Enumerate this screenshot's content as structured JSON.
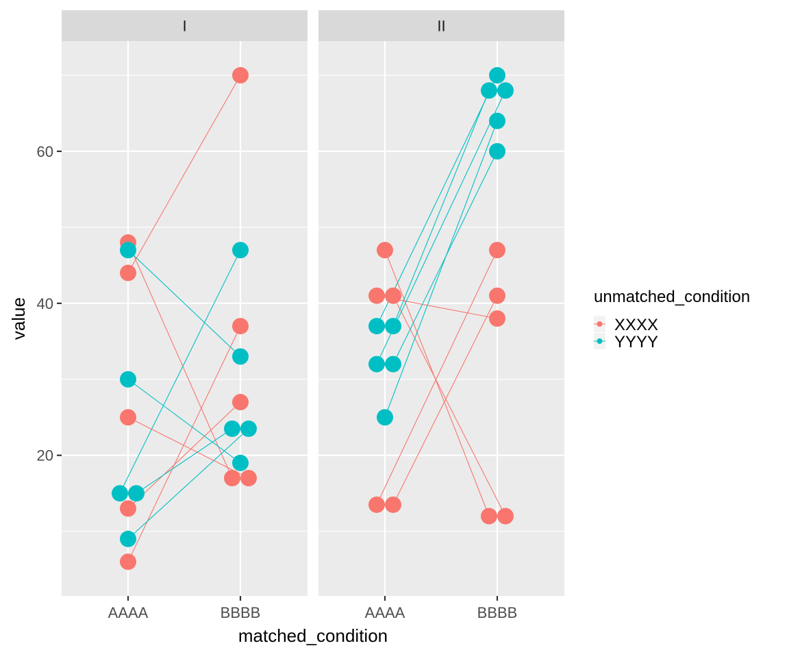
{
  "chart_data": {
    "type": "scatter",
    "xlabel": "matched_condition",
    "ylabel": "value",
    "ylim": [
      1.5,
      74.5
    ],
    "yticks": [
      20,
      40,
      60
    ],
    "categories": [
      "AAAA",
      "BBBB"
    ],
    "grid": true,
    "legend": {
      "title": "unmatched_condition",
      "placement": "right",
      "entries": [
        {
          "name": "XXXX",
          "color": "#F8766D"
        },
        {
          "name": "YYYY",
          "color": "#00BFC4"
        }
      ]
    },
    "panels": [
      {
        "strip": "I",
        "pairs": [
          {
            "group": "XXXX",
            "from": [
              "AAAA",
              48
            ],
            "to": [
              "BBBB",
              17
            ]
          },
          {
            "group": "XXXX",
            "from": [
              "AAAA",
              44
            ],
            "to": [
              "BBBB",
              70
            ]
          },
          {
            "group": "XXXX",
            "from": [
              "AAAA",
              25
            ],
            "to": [
              "BBBB",
              17
            ]
          },
          {
            "group": "XXXX",
            "from": [
              "AAAA",
              13
            ],
            "to": [
              "BBBB",
              27
            ]
          },
          {
            "group": "XXXX",
            "from": [
              "AAAA",
              6
            ],
            "to": [
              "BBBB",
              37
            ]
          },
          {
            "group": "YYYY",
            "from": [
              "AAAA",
              47
            ],
            "to": [
              "BBBB",
              33
            ]
          },
          {
            "group": "YYYY",
            "from": [
              "AAAA",
              30
            ],
            "to": [
              "BBBB",
              19
            ]
          },
          {
            "group": "YYYY",
            "from": [
              "AAAA",
              15
            ],
            "to": [
              "BBBB",
              47
            ]
          },
          {
            "group": "YYYY",
            "from": [
              "AAAA",
              15
            ],
            "to": [
              "BBBB",
              23.5
            ]
          },
          {
            "group": "YYYY",
            "from": [
              "AAAA",
              9
            ],
            "to": [
              "BBBB",
              23.5
            ]
          }
        ]
      },
      {
        "strip": "II",
        "pairs": [
          {
            "group": "XXXX",
            "from": [
              "AAAA",
              47
            ],
            "to": [
              "BBBB",
              12
            ]
          },
          {
            "group": "XXXX",
            "from": [
              "AAAA",
              41
            ],
            "to": [
              "BBBB",
              38
            ]
          },
          {
            "group": "XXXX",
            "from": [
              "AAAA",
              41
            ],
            "to": [
              "BBBB",
              12
            ]
          },
          {
            "group": "XXXX",
            "from": [
              "AAAA",
              13.5
            ],
            "to": [
              "BBBB",
              47
            ]
          },
          {
            "group": "XXXX",
            "from": [
              "AAAA",
              13.5
            ],
            "to": [
              "BBBB",
              41
            ]
          },
          {
            "group": "YYYY",
            "from": [
              "AAAA",
              37
            ],
            "to": [
              "BBBB",
              70
            ]
          },
          {
            "group": "YYYY",
            "from": [
              "AAAA",
              37
            ],
            "to": [
              "BBBB",
              68
            ]
          },
          {
            "group": "YYYY",
            "from": [
              "AAAA",
              32
            ],
            "to": [
              "BBBB",
              68
            ]
          },
          {
            "group": "YYYY",
            "from": [
              "AAAA",
              32
            ],
            "to": [
              "BBBB",
              60
            ]
          },
          {
            "group": "YYYY",
            "from": [
              "AAAA",
              25
            ],
            "to": [
              "BBBB",
              64
            ]
          }
        ]
      }
    ]
  }
}
